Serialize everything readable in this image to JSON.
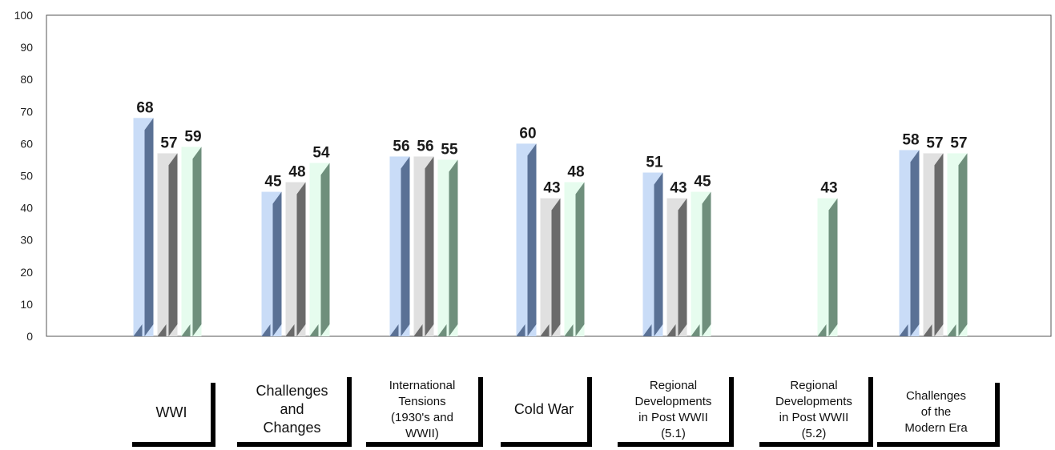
{
  "chart_data": {
    "type": "bar",
    "title": "",
    "xlabel": "",
    "ylabel": "",
    "ylim": [
      0,
      100
    ],
    "yticks": [
      0,
      10,
      20,
      30,
      40,
      50,
      60,
      70,
      80,
      90,
      100
    ],
    "categories": [
      "WWI",
      "Challenges and Changes",
      "International Tensions (1930's and WWII)",
      "Cold War",
      "Regional Developments in Post WWII (5.1)",
      "Regional Developments in Post WWII (5.2)",
      "Challenges of the Modern Era"
    ],
    "series": [
      {
        "values": [
          68,
          45,
          56,
          60,
          51,
          null,
          58
        ],
        "color": "#c9dcf7",
        "side": "#5a7195"
      },
      {
        "values": [
          57,
          48,
          56,
          43,
          43,
          null,
          57
        ],
        "color": "#e0e0e0",
        "side": "#6a6a6a"
      },
      {
        "values": [
          59,
          54,
          55,
          48,
          45,
          43,
          57
        ],
        "color": "#e6fcee",
        "side": "#6f8f7c"
      }
    ],
    "grid": false,
    "legend": "none"
  },
  "category_labels": [
    [
      "WWI"
    ],
    [
      "Challenges",
      "and",
      "Changes"
    ],
    [
      "International",
      "Tensions",
      "(1930's and",
      "WWII)"
    ],
    [
      "Cold War"
    ],
    [
      "Regional",
      "Developments",
      "in Post WWII",
      "(5.1)"
    ],
    [
      "Regional",
      "Developments",
      "in Post WWII",
      "(5.2)"
    ],
    [
      "Challenges",
      "of the",
      "Modern Era"
    ]
  ]
}
